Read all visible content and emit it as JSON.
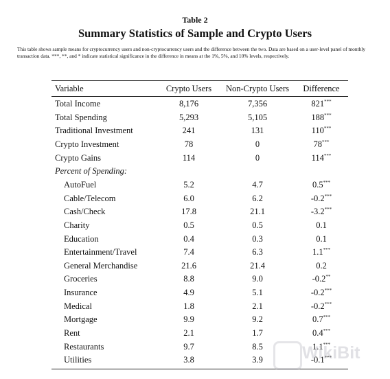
{
  "header": {
    "label": "Table 2",
    "title": "Summary Statistics of Sample and Crypto Users",
    "note": "This table shows sample means for cryptocurrency users and non-cryptocurrency users and the difference between the two. Data are based on a user-level panel of monthly transaction data. ***, **, and * indicate statistical significance in the difference in means at the 1%, 5%, and 10% levels, respectively."
  },
  "table": {
    "headers": [
      "Variable",
      "Crypto Users",
      "Non-Crypto Users",
      "Difference"
    ],
    "rows": [
      {
        "label": "Total Income",
        "crypto": "8,176",
        "non_crypto": "7,356",
        "difference": "821",
        "stars": "***"
      },
      {
        "label": "Total Spending",
        "crypto": "5,293",
        "non_crypto": "5,105",
        "difference": "188",
        "stars": "***"
      },
      {
        "label": "Traditional Investment",
        "crypto": "241",
        "non_crypto": "131",
        "difference": "110",
        "stars": "***"
      },
      {
        "label": "Crypto Investment",
        "crypto": "78",
        "non_crypto": "0",
        "difference": "78",
        "stars": "***"
      },
      {
        "label": "Crypto Gains",
        "crypto": "114",
        "non_crypto": "0",
        "difference": "114",
        "stars": "***"
      }
    ],
    "section_label": "Percent of Spending:",
    "section_rows": [
      {
        "label": "AutoFuel",
        "crypto": "5.2",
        "non_crypto": "4.7",
        "difference": "0.5",
        "stars": "***"
      },
      {
        "label": "Cable/Telecom",
        "crypto": "6.0",
        "non_crypto": "6.2",
        "difference": "-0.2",
        "stars": "***"
      },
      {
        "label": "Cash/Check",
        "crypto": "17.8",
        "non_crypto": "21.1",
        "difference": "-3.2",
        "stars": "***"
      },
      {
        "label": "Charity",
        "crypto": "0.5",
        "non_crypto": "0.5",
        "difference": "0.1"
      },
      {
        "label": "Education",
        "crypto": "0.4",
        "non_crypto": "0.3",
        "difference": "0.1"
      },
      {
        "label": "Entertainment/Travel",
        "crypto": "7.4",
        "non_crypto": "6.3",
        "difference": "1.1",
        "stars": "***"
      },
      {
        "label": "General Merchandise",
        "crypto": "21.6",
        "non_crypto": "21.4",
        "difference": "0.2"
      },
      {
        "label": "Groceries",
        "crypto": "8.8",
        "non_crypto": "9.0",
        "difference": "-0.2",
        "stars": "**"
      },
      {
        "label": "Insurance",
        "crypto": "4.9",
        "non_crypto": "5.1",
        "difference": "-0.2",
        "stars": "***"
      },
      {
        "label": "Medical",
        "crypto": "1.8",
        "non_crypto": "2.1",
        "difference": "-0.2",
        "stars": "***"
      },
      {
        "label": "Mortgage",
        "crypto": "9.9",
        "non_crypto": "9.2",
        "difference": "0.7",
        "stars": "***"
      },
      {
        "label": "Rent",
        "crypto": "2.1",
        "non_crypto": "1.7",
        "difference": "0.4",
        "stars": "***"
      },
      {
        "label": "Restaurants",
        "crypto": "9.7",
        "non_crypto": "8.5",
        "difference": "1.1",
        "stars": "***"
      },
      {
        "label": "Utilities",
        "crypto": "3.8",
        "non_crypto": "3.9",
        "difference": "-0.1",
        "stars": "***"
      }
    ]
  },
  "watermark": "WikiBit"
}
